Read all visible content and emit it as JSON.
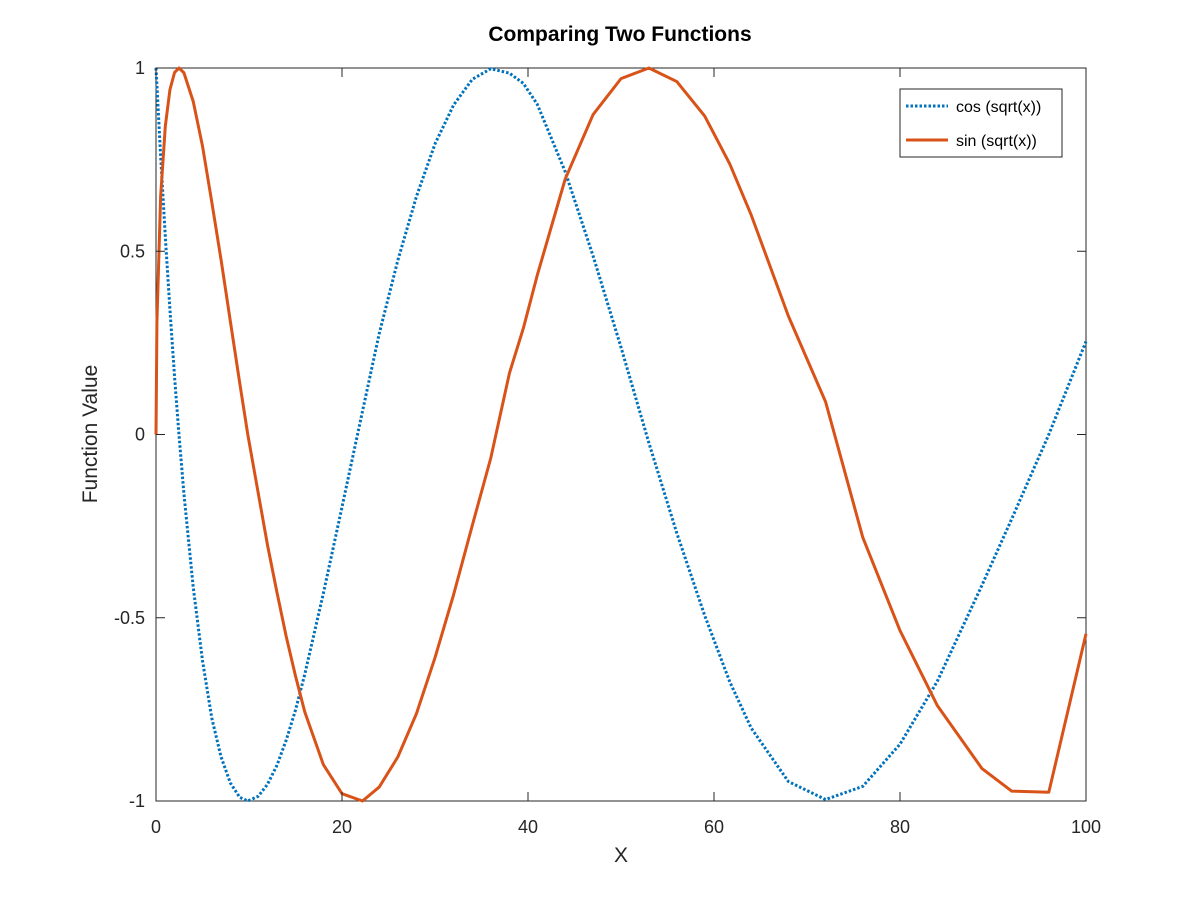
{
  "chart_data": {
    "type": "line",
    "title": "Comparing Two Functions",
    "xlabel": "X",
    "ylabel": "Function Value",
    "xlim": [
      0,
      100
    ],
    "ylim": [
      -1,
      1
    ],
    "xticks": [
      0,
      20,
      40,
      60,
      80,
      100
    ],
    "xtick_labels": [
      "0",
      "20",
      "40",
      "60",
      "80",
      "100"
    ],
    "yticks": [
      -1,
      -0.5,
      0,
      0.5,
      1
    ],
    "ytick_labels": [
      "-1",
      "-0.5",
      "0",
      "0.5",
      "1"
    ],
    "grid": false,
    "box": true,
    "legend_position": "top-right",
    "x": [
      0,
      0.1,
      0.5,
      1,
      1.5,
      2,
      2.47,
      3,
      4,
      5,
      6,
      7,
      8,
      9,
      9.87,
      11,
      12,
      13,
      14,
      15,
      16,
      18,
      20,
      22.2,
      24,
      26,
      28,
      30,
      32,
      34,
      36,
      38,
      39.5,
      41,
      44,
      47,
      50,
      53,
      56,
      59,
      61.7,
      64,
      68,
      72,
      76,
      80,
      84,
      88.8,
      92,
      96,
      100
    ],
    "series": [
      {
        "name": "cos (sqrt(x))",
        "color": "#0072bd",
        "line_style": "dotted",
        "y": [
          1.0,
          0.951,
          0.76,
          0.54,
          0.34,
          0.156,
          0.0,
          -0.161,
          -0.416,
          -0.617,
          -0.774,
          -0.88,
          -0.951,
          -0.99,
          -1.0,
          -0.987,
          -0.954,
          -0.903,
          -0.834,
          -0.752,
          -0.654,
          -0.433,
          -0.198,
          0.063,
          0.275,
          0.475,
          0.649,
          0.793,
          0.899,
          0.969,
          0.998,
          0.986,
          0.958,
          0.901,
          0.717,
          0.487,
          0.238,
          -0.023,
          -0.269,
          -0.494,
          -0.675,
          -0.801,
          -0.947,
          -0.996,
          -0.96,
          -0.845,
          -0.674,
          -0.412,
          -0.231,
          0.0,
          0.254
        ]
      },
      {
        "name": "sin (sqrt(x))",
        "color": "#d95319",
        "line_style": "solid",
        "y": [
          0.0,
          0.308,
          0.65,
          0.841,
          0.941,
          0.988,
          1.0,
          0.987,
          0.909,
          0.787,
          0.634,
          0.476,
          0.308,
          0.141,
          0.0,
          -0.161,
          -0.303,
          -0.43,
          -0.551,
          -0.659,
          -0.757,
          -0.901,
          -0.98,
          -1.0,
          -0.962,
          -0.88,
          -0.762,
          -0.609,
          -0.437,
          -0.249,
          -0.064,
          0.167,
          0.29,
          0.435,
          0.697,
          0.873,
          0.971,
          1.0,
          0.963,
          0.869,
          0.738,
          0.599,
          0.323,
          0.089,
          -0.281,
          -0.535,
          -0.739,
          -0.911,
          -0.973,
          -0.976,
          -0.544
        ]
      }
    ]
  }
}
